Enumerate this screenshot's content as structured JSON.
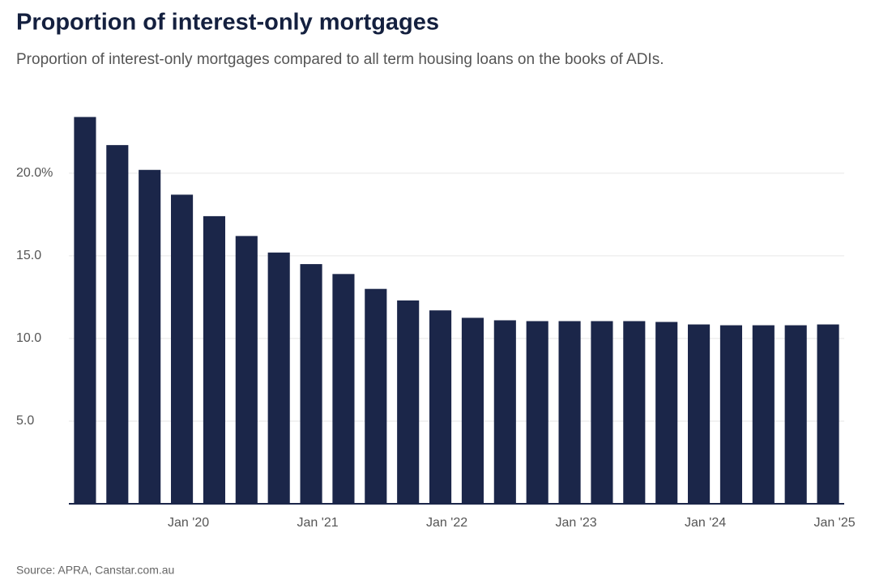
{
  "chart_data": {
    "type": "bar",
    "title": "Proportion of interest-only mortgages",
    "subtitle": "Proportion of interest-only mortgages compared to all term housing loans on the books of ADIs.",
    "source": "Source: APRA, Canstar.com.au",
    "categories": [
      null,
      null,
      null,
      "Jan '20",
      null,
      null,
      null,
      "Jan '21",
      null,
      null,
      null,
      "Jan '22",
      null,
      null,
      null,
      "Jan '23",
      null,
      null,
      null,
      "Jan '24",
      null,
      null,
      null,
      "Jan '25"
    ],
    "values": [
      23.4,
      21.7,
      20.2,
      18.7,
      17.4,
      16.2,
      15.2,
      14.5,
      13.9,
      13.0,
      12.3,
      11.7,
      11.25,
      11.1,
      11.05,
      11.05,
      11.05,
      11.05,
      11.0,
      10.85,
      10.8,
      10.8,
      10.8,
      10.85
    ],
    "color": "#1b2649",
    "ylim": [
      0,
      24.5
    ],
    "yticks": [
      {
        "value": 5,
        "label": "5.0"
      },
      {
        "value": 10,
        "label": "10.0"
      },
      {
        "value": 15,
        "label": "15.0"
      },
      {
        "value": 20,
        "label": "20.0%"
      }
    ],
    "grid": true
  }
}
